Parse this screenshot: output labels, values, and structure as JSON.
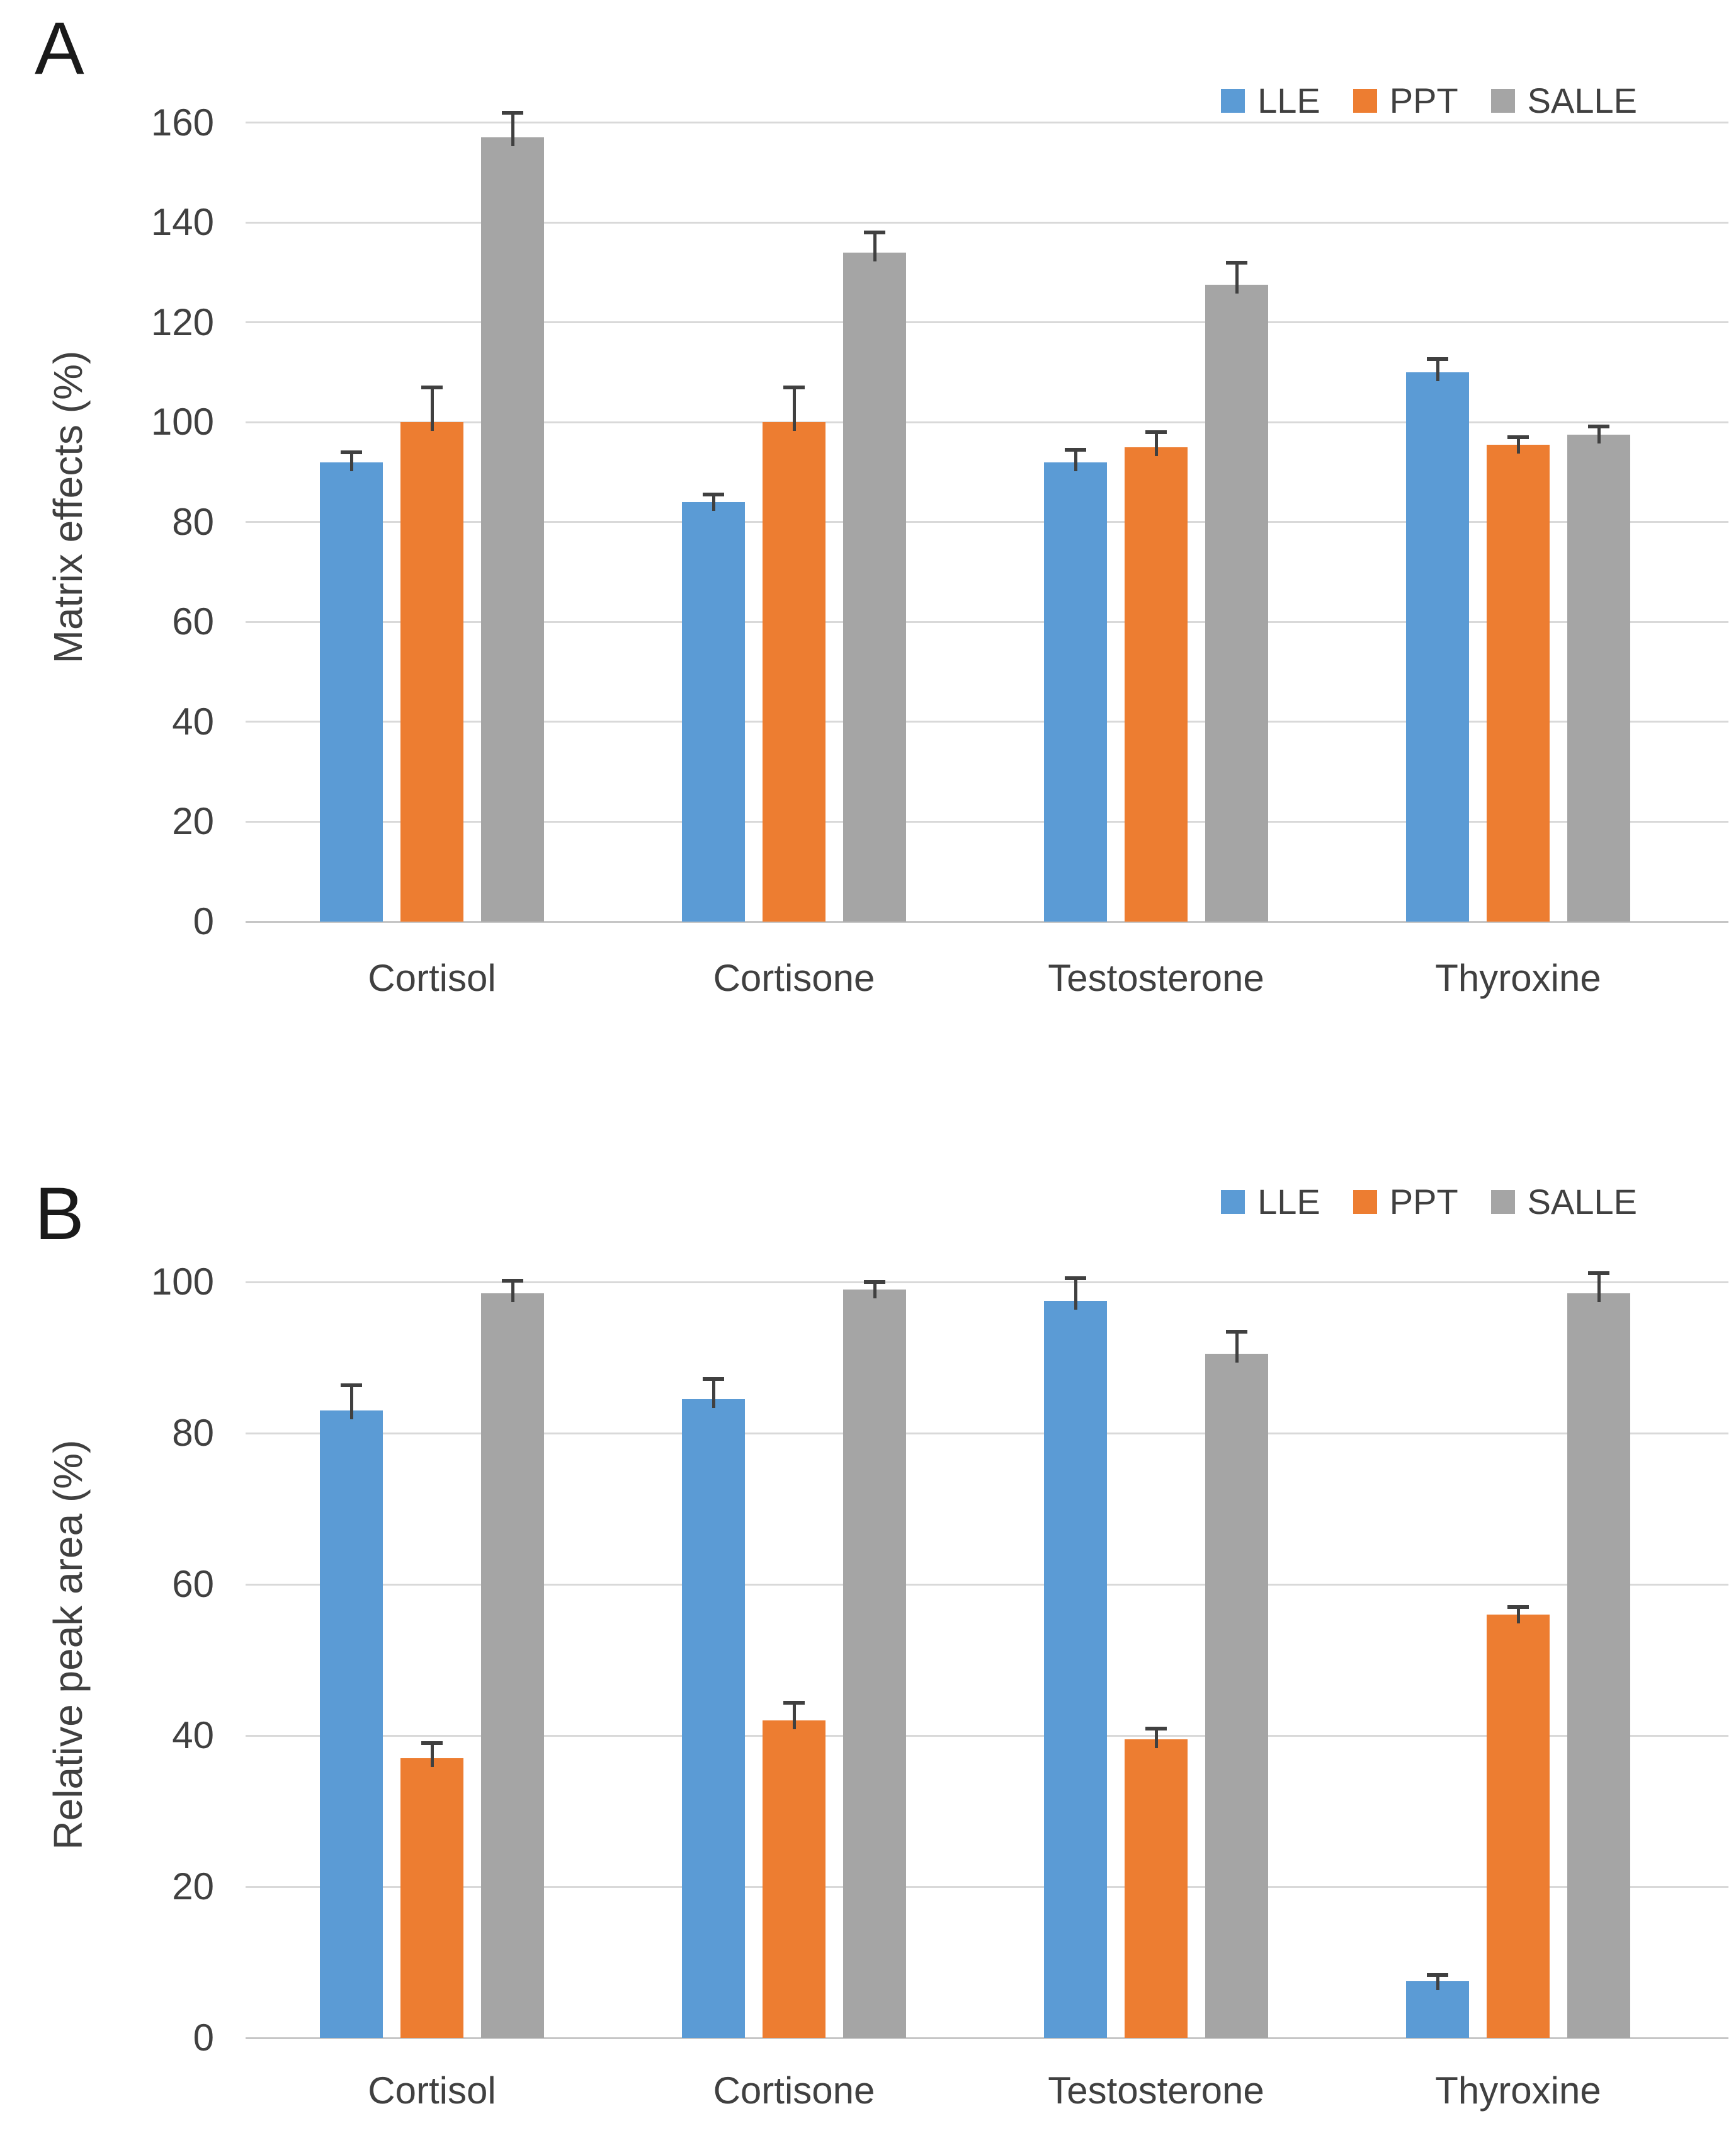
{
  "figure": {
    "background": "#FFFFFF",
    "series_colors": {
      "LLE": "#5B9BD5",
      "PPT": "#ED7D31",
      "SALLE": "#A5A5A5"
    },
    "gridline_color": "#D9D9D9",
    "error_bar_color": "#404040",
    "text_color": "#404040"
  },
  "chart_data": [
    {
      "type": "bar",
      "panel": "A",
      "title": "",
      "xlabel": "",
      "ylabel": "Matrix effects (%)",
      "categories": [
        "Cortisol",
        "Cortisone",
        "Testosterone",
        "Thyroxine"
      ],
      "series": [
        {
          "name": "LLE",
          "color": "#5B9BD5",
          "values": [
            92,
            84,
            92,
            110
          ],
          "errors": [
            2,
            1.5,
            2.5,
            2.7
          ]
        },
        {
          "name": "PPT",
          "color": "#ED7D31",
          "values": [
            100,
            100,
            95,
            95.5
          ],
          "errors": [
            7,
            7,
            3,
            1.5
          ]
        },
        {
          "name": "SALLE",
          "color": "#A5A5A5",
          "values": [
            157,
            134,
            127.5,
            97.5
          ],
          "errors": [
            5,
            4,
            4.5,
            1.7
          ]
        }
      ],
      "ylim": [
        0,
        160
      ],
      "ytick_step": 20,
      "ytick_labels": [
        "0",
        "20",
        "40",
        "60",
        "80",
        "100",
        "120",
        "140",
        "160"
      ],
      "grid": true,
      "legend_position": "top-right",
      "legend_labels": [
        "LLE",
        "PPT",
        "SALLE"
      ],
      "error_bars": "plus-direction-with-caps"
    },
    {
      "type": "bar",
      "panel": "B",
      "title": "",
      "xlabel": "",
      "ylabel": "Relative peak area (%)",
      "categories": [
        "Cortisol",
        "Cortisone",
        "Testosterone",
        "Thyroxine"
      ],
      "series": [
        {
          "name": "LLE",
          "color": "#5B9BD5",
          "values": [
            83,
            84.5,
            97.5,
            7.5
          ],
          "errors": [
            3.3,
            2.7,
            3,
            0.8
          ]
        },
        {
          "name": "PPT",
          "color": "#ED7D31",
          "values": [
            37,
            42,
            39.5,
            56
          ],
          "errors": [
            2,
            2.3,
            1.4,
            1
          ]
        },
        {
          "name": "SALLE",
          "color": "#A5A5A5",
          "values": [
            98.5,
            99,
            90.5,
            98.5
          ],
          "errors": [
            1.7,
            1,
            2.9,
            2.7
          ]
        }
      ],
      "ylim": [
        0,
        100
      ],
      "ytick_step": 20,
      "ytick_labels": [
        "0",
        "20",
        "40",
        "60",
        "80",
        "100"
      ],
      "grid": true,
      "legend_position": "top-right",
      "legend_labels": [
        "LLE",
        "PPT",
        "SALLE"
      ],
      "error_bars": "plus-direction-with-caps"
    }
  ]
}
